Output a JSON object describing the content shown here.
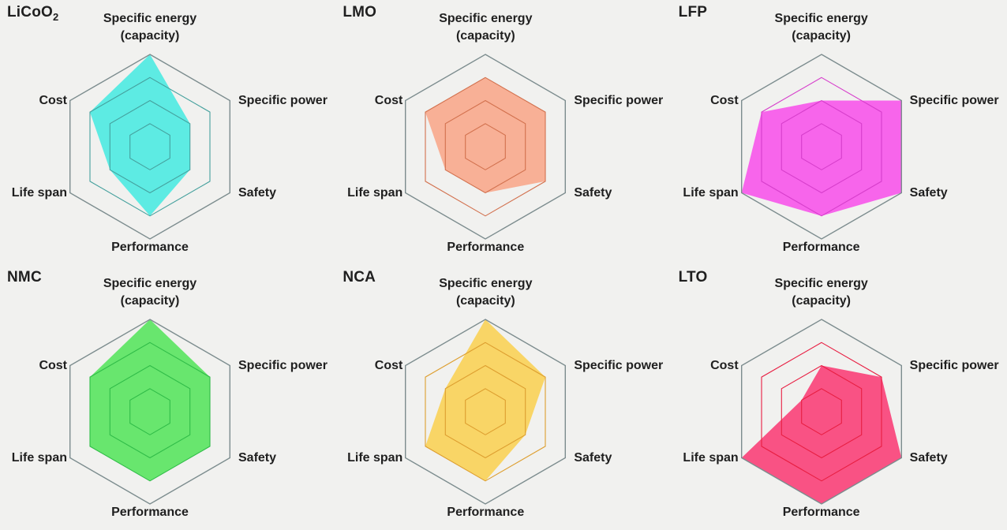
{
  "figure": {
    "background": "#f1f1ef",
    "text_color": "#1f1f1f",
    "outer_ring_color": "#7c8c8e",
    "description": "Six hexagonal radar charts comparing lithium-ion battery chemistries on a 0-4 scale"
  },
  "axis_labels": {
    "energy_line1": "Specific energy",
    "energy_line2": "(capacity)",
    "power": "Specific power",
    "safety": "Safety",
    "performance": "Performance",
    "lifespan": "Life span",
    "cost": "Cost"
  },
  "chart_data": [
    {
      "type": "radar",
      "title": "LiCoO2",
      "title_base": "LiCoO",
      "title_sub": "2",
      "axes": [
        "Specific energy (capacity)",
        "Specific power",
        "Safety",
        "Performance",
        "Life span",
        "Cost"
      ],
      "values": [
        4,
        2,
        2,
        3,
        2,
        3
      ],
      "scale_min": 0,
      "scale_max": 4,
      "ring_levels": [
        1,
        2,
        3,
        4
      ],
      "fill_color": "#4deae1",
      "ring_color": "#45a09d",
      "legend_position": "none",
      "grid": "hexagonal"
    },
    {
      "type": "radar",
      "title": "LMO",
      "title_base": "LMO",
      "title_sub": "",
      "axes": [
        "Specific energy (capacity)",
        "Specific power",
        "Safety",
        "Performance",
        "Life span",
        "Cost"
      ],
      "values": [
        3,
        3,
        3,
        2,
        2,
        3
      ],
      "scale_min": 0,
      "scale_max": 4,
      "ring_levels": [
        1,
        2,
        3,
        4
      ],
      "fill_color": "#f8a88c",
      "ring_color": "#d2714e",
      "legend_position": "none",
      "grid": "hexagonal"
    },
    {
      "type": "radar",
      "title": "LFP",
      "title_base": "LFP",
      "title_sub": "",
      "axes": [
        "Specific energy (capacity)",
        "Specific power",
        "Safety",
        "Performance",
        "Life span",
        "Cost"
      ],
      "values": [
        2,
        4,
        4,
        3,
        4,
        3
      ],
      "scale_min": 0,
      "scale_max": 4,
      "ring_levels": [
        1,
        2,
        3,
        4
      ],
      "fill_color": "#f755ea",
      "ring_color": "#d63ecb",
      "legend_position": "none",
      "grid": "hexagonal"
    },
    {
      "type": "radar",
      "title": "NMC",
      "title_base": "NMC",
      "title_sub": "",
      "axes": [
        "Specific energy (capacity)",
        "Specific power",
        "Safety",
        "Performance",
        "Life span",
        "Cost"
      ],
      "values": [
        4,
        3,
        3,
        3,
        3,
        3
      ],
      "scale_min": 0,
      "scale_max": 4,
      "ring_levels": [
        1,
        2,
        3,
        4
      ],
      "fill_color": "#59e45f",
      "ring_color": "#30bc48",
      "legend_position": "none",
      "grid": "hexagonal"
    },
    {
      "type": "radar",
      "title": "NCA",
      "title_base": "NCA",
      "title_sub": "",
      "axes": [
        "Specific energy (capacity)",
        "Specific power",
        "Safety",
        "Performance",
        "Life span",
        "Cost"
      ],
      "values": [
        4,
        3,
        2,
        3,
        3,
        2
      ],
      "scale_min": 0,
      "scale_max": 4,
      "ring_levels": [
        1,
        2,
        3,
        4
      ],
      "fill_color": "#f9d257",
      "ring_color": "#dd9e2f",
      "legend_position": "none",
      "grid": "hexagonal"
    },
    {
      "type": "radar",
      "title": "LTO",
      "title_base": "LTO",
      "title_sub": "",
      "axes": [
        "Specific energy (capacity)",
        "Specific power",
        "Safety",
        "Performance",
        "Life span",
        "Cost"
      ],
      "values": [
        2,
        3,
        4,
        4,
        4,
        1
      ],
      "scale_min": 0,
      "scale_max": 4,
      "ring_levels": [
        1,
        2,
        3,
        4
      ],
      "fill_color": "#fa4078",
      "ring_color": "#e81e42",
      "legend_position": "none",
      "grid": "hexagonal"
    }
  ]
}
